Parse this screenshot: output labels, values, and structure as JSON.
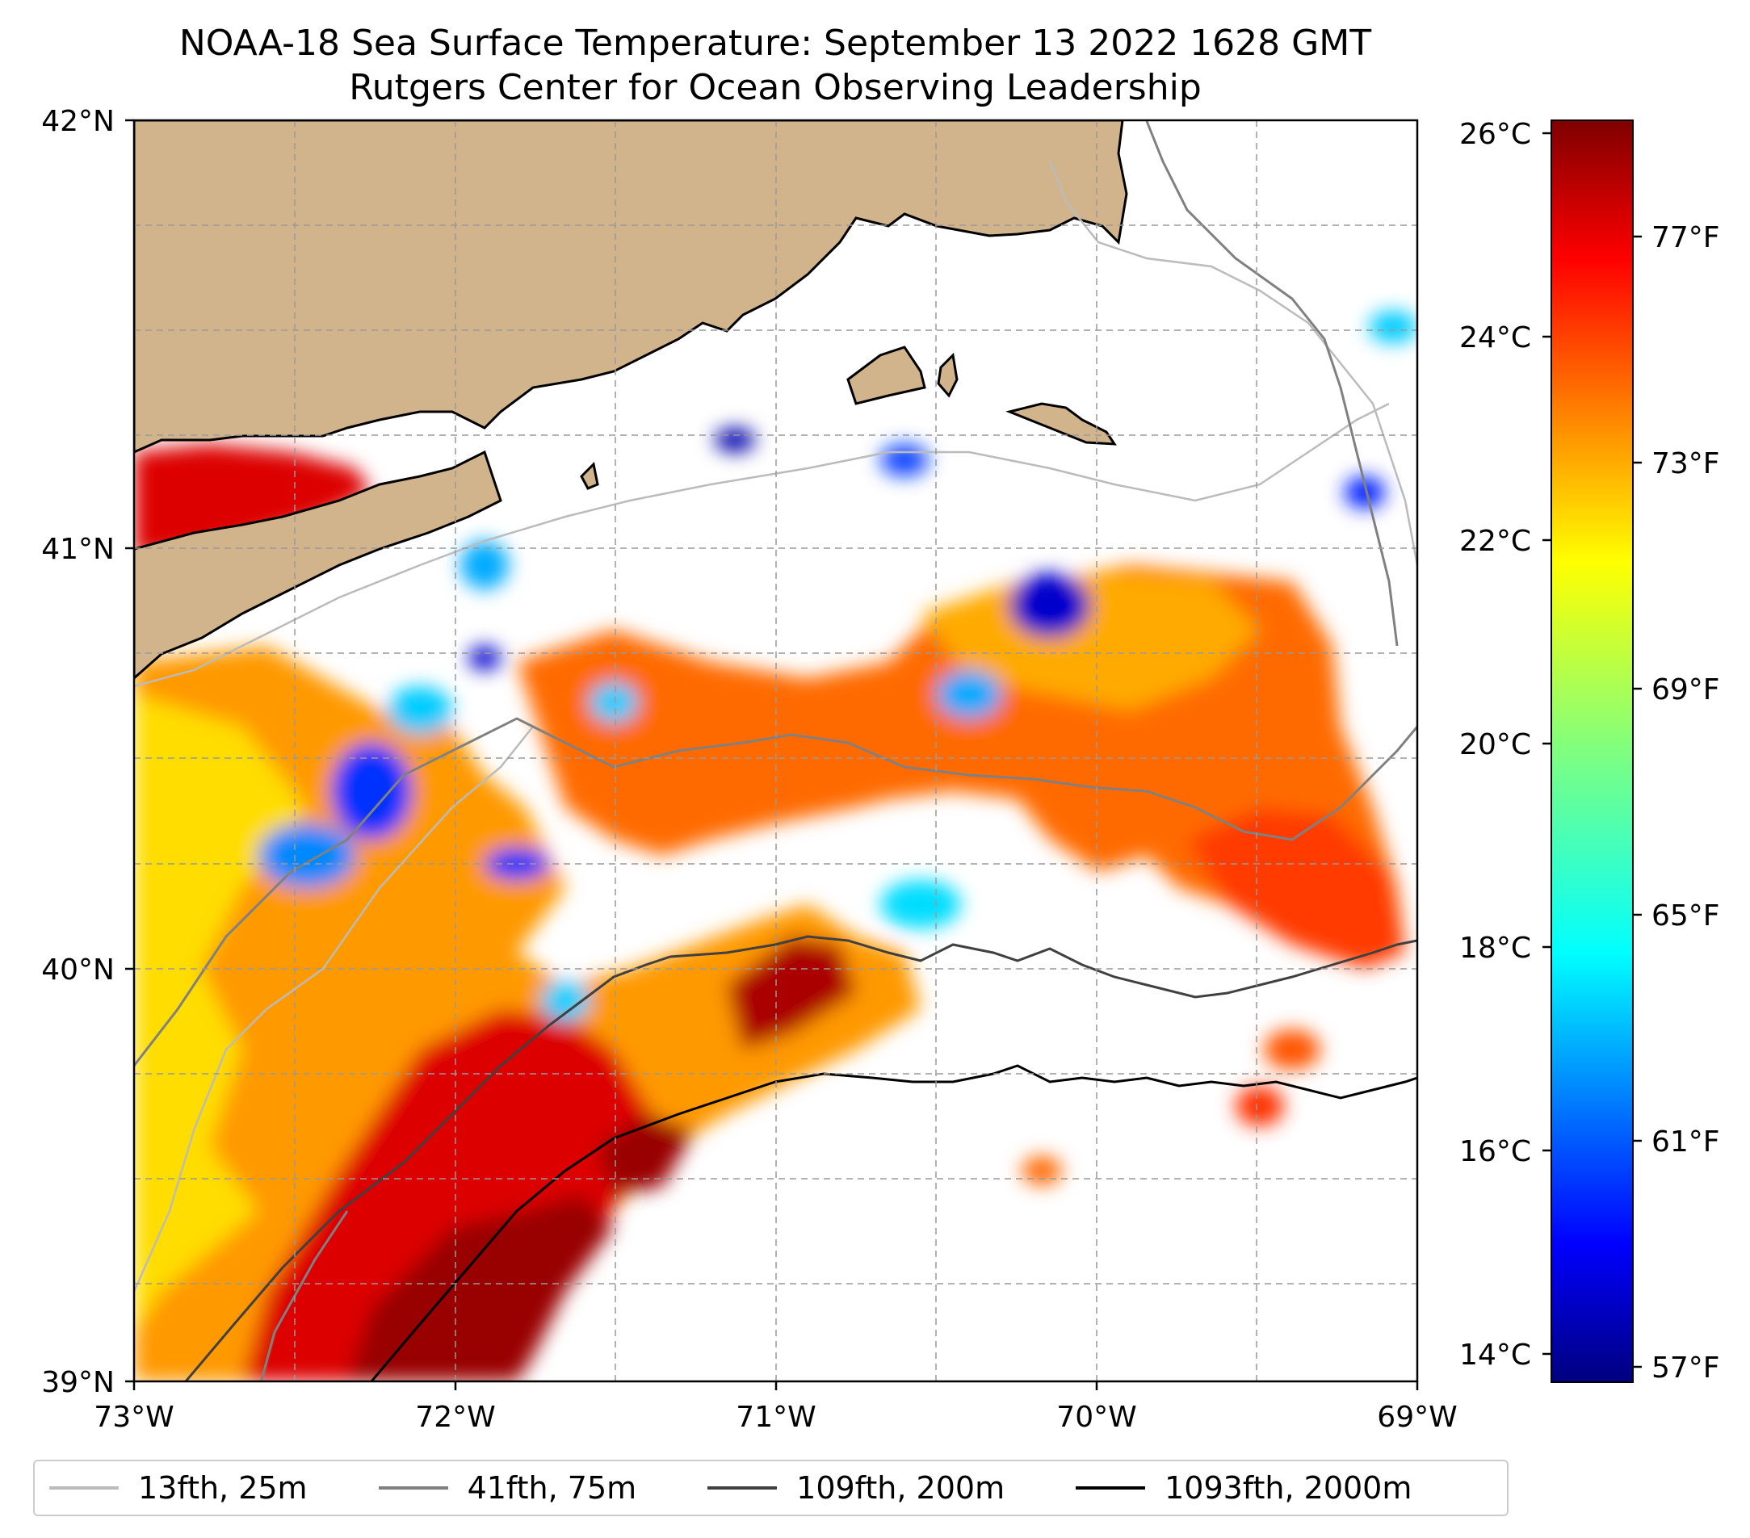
{
  "title": {
    "line1": "NOAA-18 Sea Surface Temperature: September 13 2022 1628 GMT",
    "line2": "Rutgers Center for Ocean Observing Leadership"
  },
  "map": {
    "lon_range": [
      -73,
      -69
    ],
    "lat_range": [
      39,
      42
    ],
    "lon_ticks": [
      "73°W",
      "72°W",
      "71°W",
      "70°W",
      "69°W"
    ],
    "lat_ticks": [
      "42°N",
      "41°N",
      "40°N",
      "39°N"
    ],
    "land_color": "#d2b48c",
    "no_data_color": "#ffffff",
    "gridlines": "dashed",
    "projection": "lat-lon"
  },
  "colorbar": {
    "celsius_ticks": [
      "26°C",
      "24°C",
      "22°C",
      "20°C",
      "18°C",
      "16°C",
      "14°C"
    ],
    "fahrenheit_ticks": [
      "77°F",
      "73°F",
      "69°F",
      "65°F",
      "61°F",
      "57°F"
    ],
    "colormap": "jet",
    "range_c": [
      13.8,
      26.2
    ]
  },
  "legend": {
    "items": [
      {
        "label": "13fth, 25m",
        "color": "#bbbbbb"
      },
      {
        "label": "41fth, 75m",
        "color": "#808080"
      },
      {
        "label": "109fth, 200m",
        "color": "#404040"
      },
      {
        "label": "1093fth, 2000m",
        "color": "#000000"
      }
    ]
  }
}
